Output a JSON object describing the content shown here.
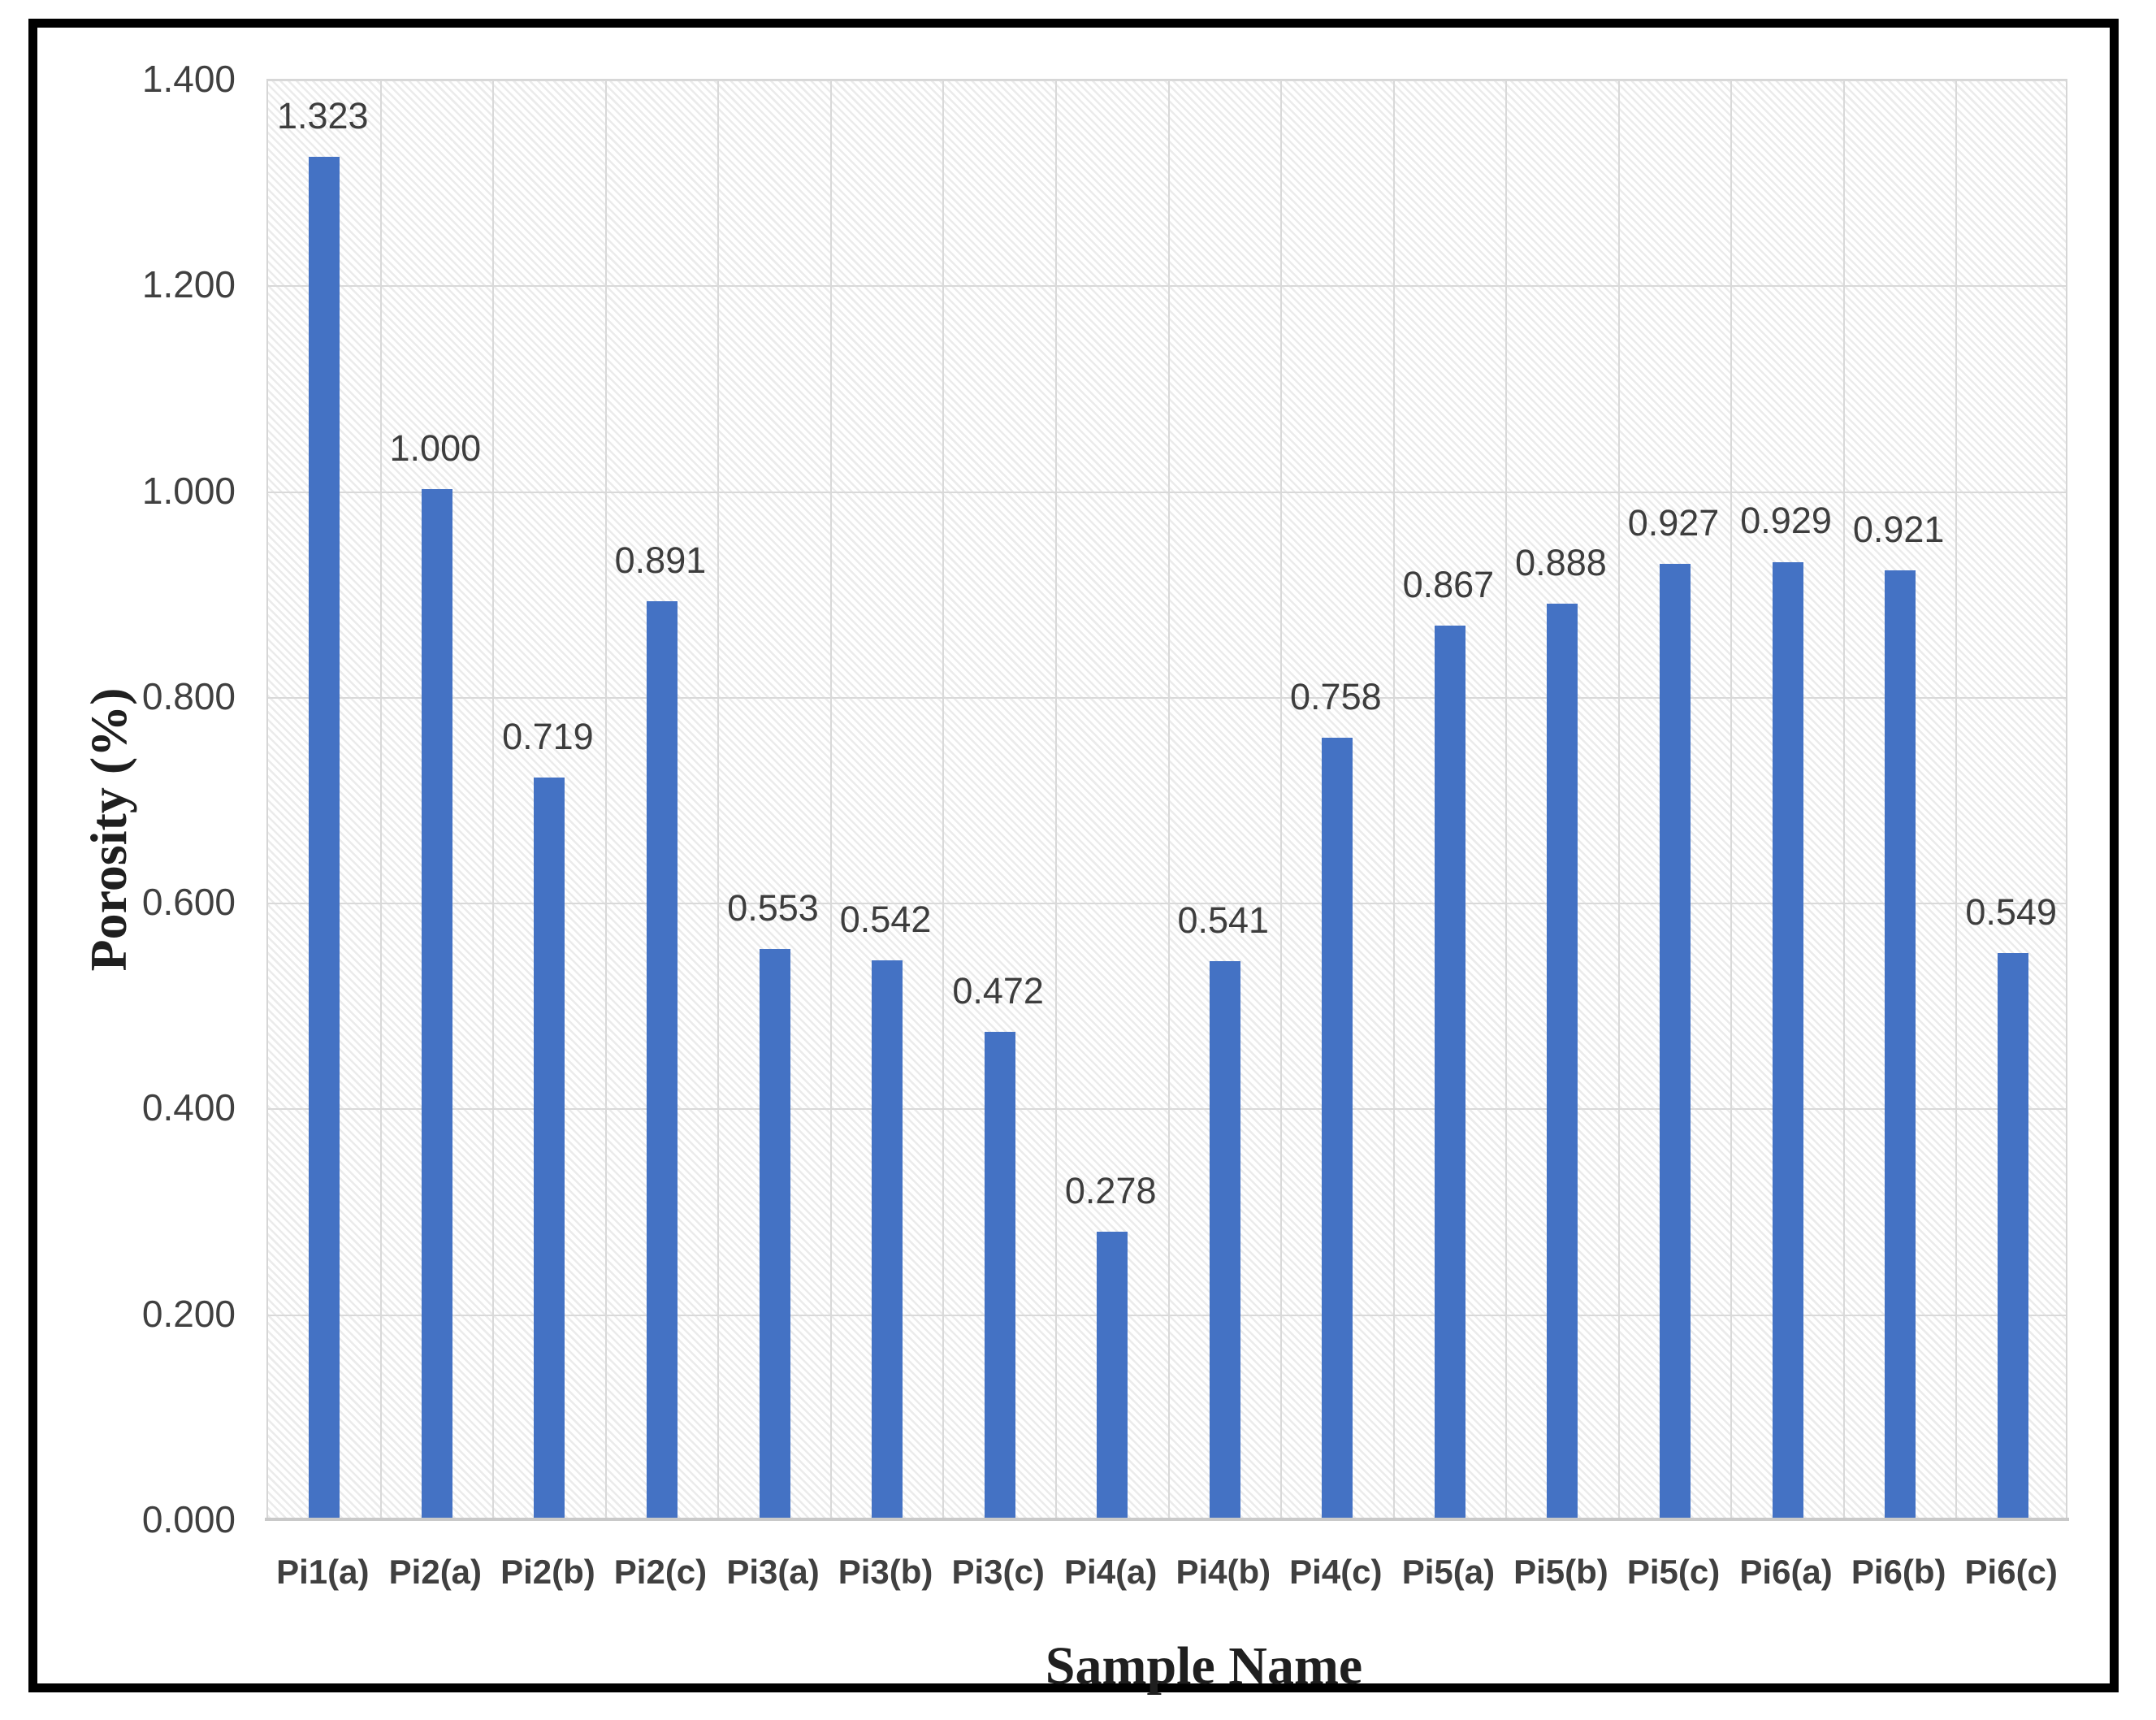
{
  "chart_data": {
    "type": "bar",
    "title": "",
    "xlabel": "Sample Name",
    "ylabel": "Porosity (%)",
    "categories": [
      "Pi1(a)",
      "Pi2(a)",
      "Pi2(b)",
      "Pi2(c)",
      "Pi3(a)",
      "Pi3(b)",
      "Pi3(c)",
      "Pi4(a)",
      "Pi4(b)",
      "Pi4(c)",
      "Pi5(a)",
      "Pi5(b)",
      "Pi5(c)",
      "Pi6(a)",
      "Pi6(b)",
      "Pi6(c)"
    ],
    "values": [
      1.323,
      1.0,
      0.719,
      0.891,
      0.553,
      0.542,
      0.472,
      0.278,
      0.541,
      0.758,
      0.867,
      0.888,
      0.927,
      0.929,
      0.921,
      0.549
    ],
    "data_labels": [
      "1.323",
      "1.000",
      "0.719",
      "0.891",
      "0.553",
      "0.542",
      "0.472",
      "0.278",
      "0.541",
      "0.758",
      "0.867",
      "0.888",
      "0.927",
      "0.929",
      "0.921",
      "0.549"
    ],
    "ylim": [
      0,
      1.4
    ],
    "ytick_labels": [
      "0.000",
      "0.200",
      "0.400",
      "0.600",
      "0.800",
      "1.000",
      "1.200",
      "1.400"
    ],
    "ytick_values": [
      0,
      0.2,
      0.4,
      0.6,
      0.8,
      1.0,
      1.2,
      1.4
    ],
    "grid": true,
    "legend": false,
    "colors": {
      "bar": "#4472C4",
      "gridline": "#d9d9d9",
      "tick_label": "#404040",
      "data_label": "#3d3d3d",
      "axis_title": "#1f1f1f",
      "frame_border": "#000000"
    }
  }
}
